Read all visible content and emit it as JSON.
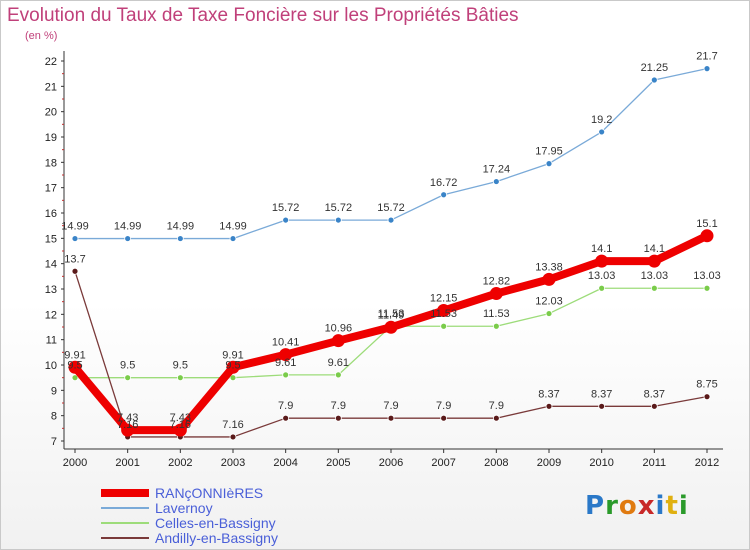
{
  "title": "Evolution du Taux de Taxe Foncière sur les Propriétés Bâties",
  "unit_label": "(en %)",
  "logo": {
    "text": [
      "P",
      "r",
      "o",
      "x",
      "i",
      "t",
      "i"
    ],
    "colors": [
      "#2a78c8",
      "#2a9a2a",
      "#e07a10",
      "#c82828",
      "#2a78c8",
      "#e0b010",
      "#2a9a2a"
    ]
  },
  "chart_data": {
    "type": "line",
    "title": "Evolution du Taux de Taxe Foncière sur les Propriétés Bâties",
    "ylabel": "(en %)",
    "xlabel": "",
    "ylim": [
      7,
      22
    ],
    "yticks": [
      "7",
      "8",
      "9",
      "10",
      "11",
      "12",
      "13",
      "14",
      "15",
      "16",
      "17",
      "18",
      "19",
      "20",
      "21",
      "22"
    ],
    "categories": [
      "2000",
      "2001",
      "2002",
      "2003",
      "2004",
      "2005",
      "2006",
      "2007",
      "2008",
      "2009",
      "2010",
      "2011",
      "2012"
    ],
    "series": [
      {
        "name": "Lavernoy",
        "color": "#7aaad8",
        "point_color": "#3a84c8",
        "emphasis": false,
        "values": [
          14.99,
          14.99,
          14.99,
          14.99,
          15.72,
          15.72,
          15.72,
          16.72,
          17.24,
          17.95,
          19.2,
          21.25,
          21.7
        ],
        "labels": [
          "14.99",
          "14.99",
          "14.99",
          "14.99",
          "15.72",
          "15.72",
          "15.72",
          "16.72",
          "17.24",
          "17.95",
          "19.2",
          "21.25",
          "21.7"
        ]
      },
      {
        "name": "Celles-en-Bassigny",
        "color": "#9ddc7a",
        "point_color": "#7acc4a",
        "emphasis": false,
        "values": [
          9.5,
          9.5,
          9.5,
          9.5,
          9.61,
          9.61,
          11.53,
          11.53,
          11.53,
          12.03,
          13.03,
          13.03,
          13.03
        ],
        "labels": [
          "9.5",
          "9.5",
          "9.5",
          "9.5",
          "9.61",
          "9.61",
          "11.53",
          "11.53",
          "11.53",
          "12.03",
          "13.03",
          "13.03",
          "13.03"
        ]
      },
      {
        "name": "Andilly-en-Bassigny",
        "color": "#7a3a3a",
        "point_color": "#5a1a1a",
        "emphasis": false,
        "values": [
          13.7,
          7.16,
          7.16,
          7.16,
          7.9,
          7.9,
          7.9,
          7.9,
          7.9,
          8.37,
          8.37,
          8.37,
          8.75
        ],
        "labels": [
          "13.7",
          "7.16",
          "7.16",
          "7.16",
          "7.9",
          "7.9",
          "7.9",
          "7.9",
          "7.9",
          "8.37",
          "8.37",
          "8.37",
          "8.75"
        ]
      },
      {
        "name": "RANçONNIèRES",
        "color": "#ee0000",
        "point_color": "#ee0000",
        "emphasis": true,
        "values": [
          9.91,
          7.43,
          7.43,
          9.91,
          10.41,
          10.96,
          11.49,
          12.15,
          12.82,
          13.38,
          14.1,
          14.1,
          15.1
        ],
        "labels": [
          "9.91",
          "7.43",
          "7.43",
          "9.91",
          "10.41",
          "10.96",
          "11.49",
          "12.15",
          "12.82",
          "13.38",
          "14.1",
          "14.1",
          "15.1"
        ]
      }
    ],
    "legend": [
      "RANçONNIèRES",
      "Lavernoy",
      "Celles-en-Bassigny",
      "Andilly-en-Bassigny"
    ],
    "grid": false
  }
}
